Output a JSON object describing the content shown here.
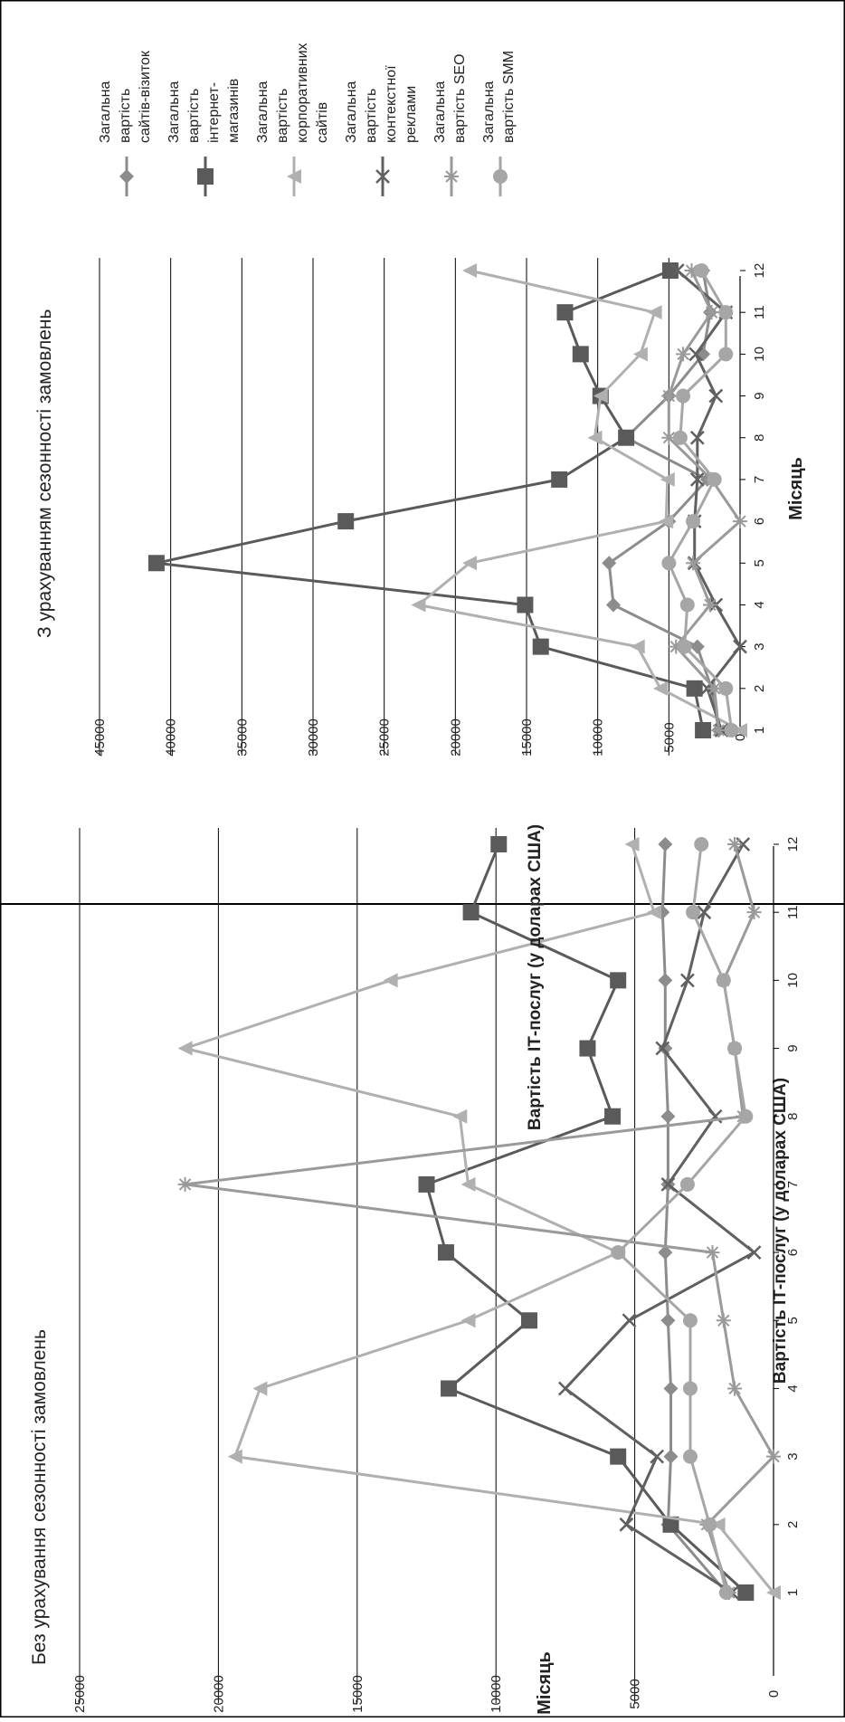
{
  "chart_data": [
    {
      "type": "line",
      "title": "Без урахування сезонності замовлень",
      "xlabel": "Місяць",
      "ylabel": "Вартість ІТ-послуг (у доларах США)",
      "ylim": [
        0,
        25000
      ],
      "yticks": [
        0,
        5000,
        10000,
        15000,
        20000,
        25000
      ],
      "grid": true,
      "categories": [
        "1",
        "2",
        "3",
        "4",
        "5",
        "6",
        "7",
        "8",
        "9",
        "10",
        "11",
        "12"
      ],
      "legend_position": "right",
      "series": [
        {
          "name_lines": [
            "Загальна",
            "вартість",
            "сайтів-візиток"
          ],
          "marker": "diamond",
          "color": "#8c8c8c",
          "values": [
            1700,
            3800,
            3700,
            3700,
            3800,
            3900,
            3800,
            3800,
            3900,
            3900,
            4000,
            3900
          ]
        },
        {
          "name_lines": [
            "Загальна",
            "вартість",
            "інтернет-",
            "магазинів"
          ],
          "marker": "square",
          "color": "#5a5a5a",
          "values": [
            1000,
            3700,
            5600,
            11700,
            8800,
            11800,
            12500,
            5800,
            6700,
            5600,
            10900,
            9900
          ]
        },
        {
          "name_lines": [
            "Загальна",
            "вартість",
            "корпоративних",
            "сайтів"
          ],
          "marker": "triangle",
          "color": "#b0b0b0",
          "values": [
            0,
            2000,
            19400,
            18500,
            11000,
            5600,
            11000,
            11300,
            21200,
            13800,
            4300,
            5100
          ]
        },
        {
          "name_lines": [
            "Загальна",
            "вартість",
            "контекстної",
            "реклами"
          ],
          "marker": "x",
          "color": "#606060",
          "values": [
            1500,
            5300,
            4200,
            7500,
            5200,
            700,
            3800,
            2100,
            4000,
            3100,
            2500,
            1100
          ]
        },
        {
          "name_lines": [
            "Загальна",
            "вартість SEO"
          ],
          "marker": "star",
          "color": "#9a9a9a",
          "values": [
            1600,
            2400,
            0,
            1400,
            1800,
            2200,
            21200,
            1100,
            1400,
            1800,
            700,
            1400
          ]
        },
        {
          "name_lines": [
            "Загальна",
            "вартість SMM"
          ],
          "marker": "circle",
          "color": "#a6a6a6",
          "values": [
            1700,
            2300,
            3000,
            3000,
            3000,
            5600,
            3100,
            1000,
            1400,
            1800,
            2900,
            2600
          ]
        }
      ]
    },
    {
      "type": "line",
      "title": "З урахуванням сезонності замовлень",
      "xlabel": "Місяць",
      "ylabel": "Вартість ІТ-послуг (у доларах США)",
      "ylim": [
        0,
        45000
      ],
      "yticks": [
        0,
        5000,
        10000,
        15000,
        20000,
        25000,
        30000,
        35000,
        40000,
        45000
      ],
      "grid": true,
      "categories": [
        "1",
        "2",
        "3",
        "4",
        "5",
        "6",
        "7",
        "8",
        "9",
        "10",
        "11",
        "12"
      ],
      "legend_position": "right",
      "series": [
        {
          "name_lines": [
            "Загальна",
            "вартість",
            "сайтів-візиток"
          ],
          "marker": "diamond",
          "color": "#8c8c8c",
          "values": [
            1500,
            2000,
            3000,
            8900,
            9200,
            5000,
            2300,
            8000,
            5000,
            2600,
            2100,
            2600
          ]
        },
        {
          "name_lines": [
            "Загальна",
            "вартість",
            "інтернет-",
            "магазинів"
          ],
          "marker": "square",
          "color": "#5a5a5a",
          "values": [
            2600,
            3200,
            14000,
            15100,
            41000,
            27700,
            12700,
            8000,
            9800,
            11200,
            12300,
            4900
          ]
        },
        {
          "name_lines": [
            "Загальна",
            "вартість",
            "корпоративних",
            "сайтів"
          ],
          "marker": "triangle",
          "color": "#b0b0b0",
          "values": [
            0,
            5600,
            7200,
            22600,
            19000,
            5200,
            5100,
            10200,
            9800,
            7000,
            6000,
            19000
          ]
        },
        {
          "name_lines": [
            "Загальна",
            "вартість",
            "контекстної",
            "реклами"
          ],
          "marker": "x",
          "color": "#606060",
          "values": [
            1300,
            2300,
            0,
            1700,
            3200,
            3200,
            3000,
            3000,
            1700,
            3100,
            1000,
            4400
          ]
        },
        {
          "name_lines": [
            "Загальна",
            "вартість SEO"
          ],
          "marker": "star",
          "color": "#9a9a9a",
          "values": [
            1500,
            1800,
            4500,
            2100,
            3300,
            0,
            2000,
            5000,
            5000,
            4000,
            2000,
            3400
          ]
        },
        {
          "name_lines": [
            "Загальна",
            "вартість SMM"
          ],
          "marker": "circle",
          "color": "#a6a6a6",
          "values": [
            600,
            1000,
            3900,
            3700,
            5000,
            3300,
            1800,
            4200,
            4000,
            1000,
            1000,
            2700
          ]
        }
      ]
    }
  ]
}
